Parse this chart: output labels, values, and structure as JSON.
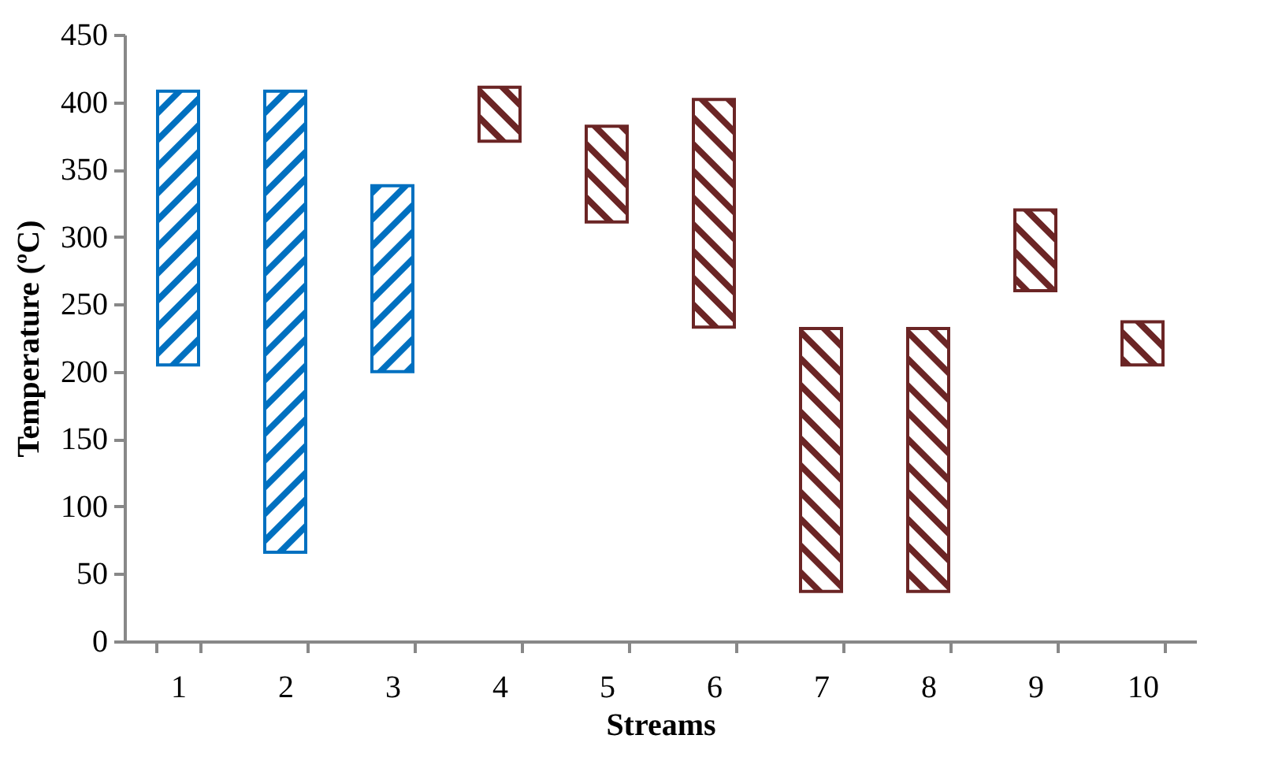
{
  "chart_data": {
    "type": "bar",
    "xlabel": "Streams",
    "ylabel": "Temperature (ºC)",
    "categories": [
      "1",
      "2",
      "3",
      "4",
      "5",
      "6",
      "7",
      "8",
      "9",
      "10"
    ],
    "base": [
      205,
      66,
      200,
      371,
      311,
      233,
      37,
      37,
      260,
      205
    ],
    "values": [
      203,
      342,
      138,
      40,
      71,
      169,
      195,
      195,
      60,
      32
    ],
    "colors": [
      "#0070c0",
      "#0070c0",
      "#0070c0",
      "#6b2525",
      "#6b2525",
      "#6b2525",
      "#6b2525",
      "#6b2525",
      "#6b2525",
      "#6b2525"
    ],
    "ylim": [
      0,
      450
    ],
    "yticks": [
      0,
      50,
      100,
      150,
      200,
      250,
      300,
      350,
      400,
      450
    ],
    "grid": false
  }
}
